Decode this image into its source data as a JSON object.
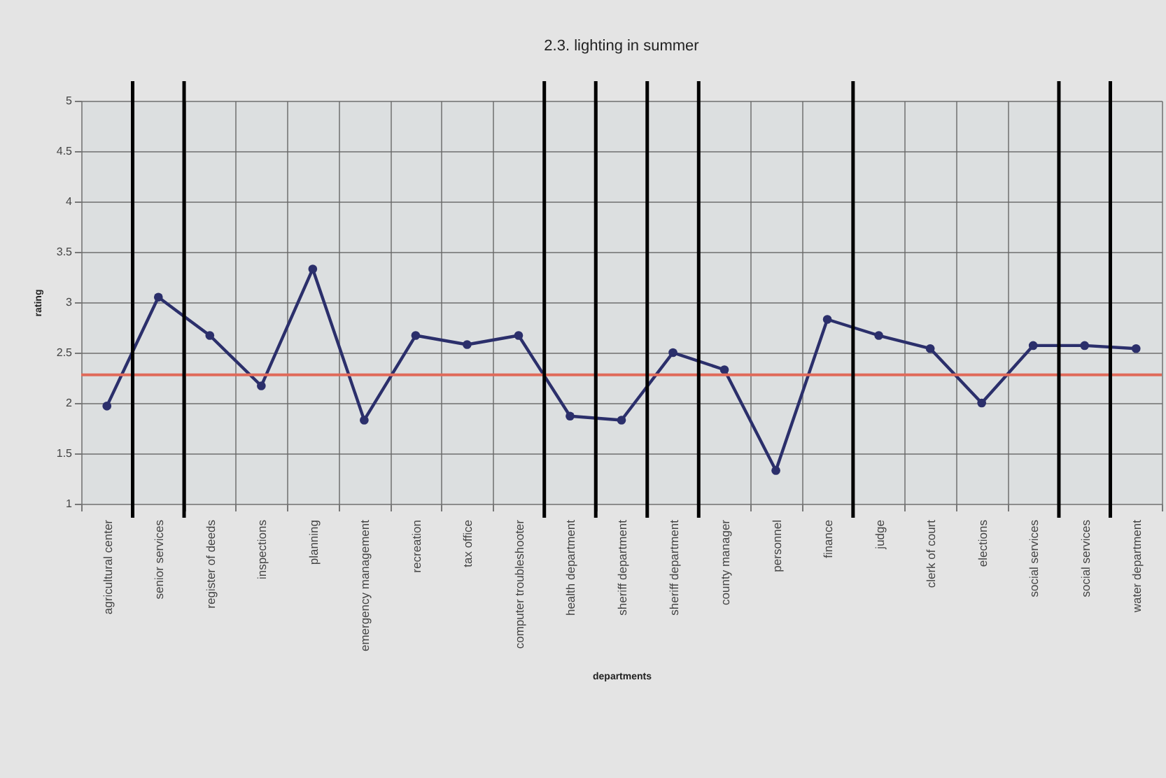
{
  "chart_data": {
    "type": "line",
    "title": "2.3. lighting in summer",
    "xlabel": "departments",
    "ylabel": "rating",
    "categories": [
      "agricultural center",
      "senior services",
      "register of deeds",
      "inspections",
      "planning",
      "emergency management",
      "recreation",
      "tax office",
      "computer troubleshooter",
      "health department",
      "sheriff department",
      "sheriff department",
      "county manager",
      "personnel",
      "finance",
      "judge",
      "clerk of court",
      "elections",
      "social services",
      "social services",
      "water department"
    ],
    "series": [
      {
        "color": "#2b2f6b",
        "values": [
          1.97,
          3.05,
          2.67,
          2.17,
          3.33,
          1.83,
          2.67,
          2.58,
          2.67,
          1.87,
          1.83,
          2.5,
          2.33,
          1.33,
          2.83,
          2.67,
          2.54,
          2.0,
          2.57,
          2.57,
          2.54
        ]
      }
    ],
    "ylim": [
      1,
      5
    ],
    "yticks": [
      1,
      1.5,
      2,
      2.5,
      3,
      3.5,
      4,
      4.5,
      5
    ],
    "grid": true,
    "marker": "circle",
    "line_style": "solid",
    "ref_lines": [
      {
        "axis": "y",
        "value": 2.28,
        "color": "#e06a5a"
      }
    ]
  }
}
